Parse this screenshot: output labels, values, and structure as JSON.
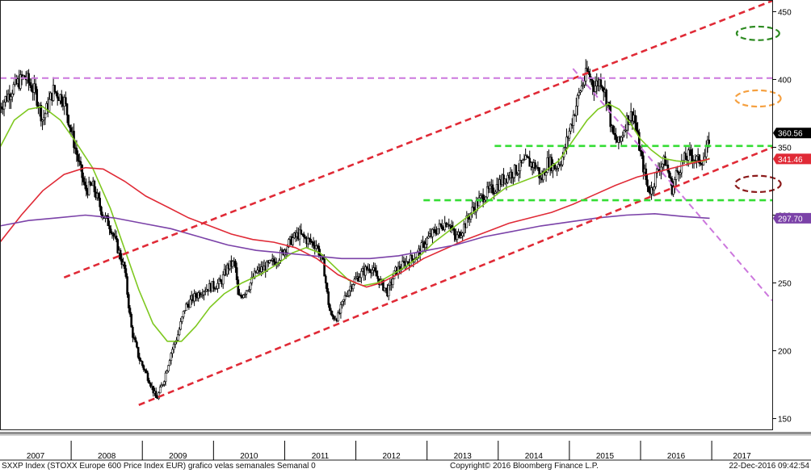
{
  "chart_data": {
    "type": "line",
    "series_desc": "weekly candlesticks with 50-week, 100-week and 200-week moving averages",
    "y_axis": {
      "position": "right",
      "ylim": [
        142,
        458
      ],
      "ticks": [
        150,
        200,
        250,
        300,
        350,
        400,
        450
      ]
    },
    "x_axis": {
      "xlim": [
        2007.0,
        2017.85
      ],
      "year_labels": [
        "2007",
        "2008",
        "2009",
        "2010",
        "2011",
        "2012",
        "2013",
        "2014",
        "2015",
        "2016",
        "2017"
      ]
    },
    "price_anchors": [
      [
        2007.0,
        380
      ],
      [
        2007.2,
        395
      ],
      [
        2007.35,
        402
      ],
      [
        2007.5,
        390
      ],
      [
        2007.6,
        370
      ],
      [
        2007.75,
        392
      ],
      [
        2007.9,
        385
      ],
      [
        2008.0,
        362
      ],
      [
        2008.1,
        340
      ],
      [
        2008.2,
        318
      ],
      [
        2008.3,
        322
      ],
      [
        2008.45,
        300
      ],
      [
        2008.55,
        292
      ],
      [
        2008.65,
        276
      ],
      [
        2008.75,
        260
      ],
      [
        2008.85,
        215
      ],
      [
        2008.95,
        195
      ],
      [
        2009.1,
        178
      ],
      [
        2009.2,
        164
      ],
      [
        2009.3,
        178
      ],
      [
        2009.4,
        198
      ],
      [
        2009.5,
        212
      ],
      [
        2009.6,
        232
      ],
      [
        2009.7,
        238
      ],
      [
        2009.85,
        245
      ],
      [
        2010.0,
        248
      ],
      [
        2010.1,
        250
      ],
      [
        2010.2,
        262
      ],
      [
        2010.3,
        265
      ],
      [
        2010.35,
        238
      ],
      [
        2010.5,
        248
      ],
      [
        2010.6,
        258
      ],
      [
        2010.75,
        262
      ],
      [
        2010.9,
        268
      ],
      [
        2011.0,
        275
      ],
      [
        2011.1,
        282
      ],
      [
        2011.2,
        286
      ],
      [
        2011.3,
        282
      ],
      [
        2011.45,
        278
      ],
      [
        2011.55,
        262
      ],
      [
        2011.6,
        240
      ],
      [
        2011.65,
        225
      ],
      [
        2011.75,
        225
      ],
      [
        2011.85,
        240
      ],
      [
        2011.95,
        250
      ],
      [
        2012.1,
        258
      ],
      [
        2012.2,
        262
      ],
      [
        2012.35,
        250
      ],
      [
        2012.45,
        243
      ],
      [
        2012.55,
        258
      ],
      [
        2012.7,
        265
      ],
      [
        2012.85,
        270
      ],
      [
        2013.0,
        282
      ],
      [
        2013.15,
        290
      ],
      [
        2013.3,
        296
      ],
      [
        2013.4,
        282
      ],
      [
        2013.5,
        290
      ],
      [
        2013.65,
        305
      ],
      [
        2013.8,
        315
      ],
      [
        2013.95,
        320
      ],
      [
        2014.1,
        328
      ],
      [
        2014.25,
        333
      ],
      [
        2014.4,
        340
      ],
      [
        2014.55,
        335
      ],
      [
        2014.6,
        325
      ],
      [
        2014.7,
        340
      ],
      [
        2014.8,
        335
      ],
      [
        2014.9,
        342
      ],
      [
        2015.05,
        372
      ],
      [
        2015.15,
        392
      ],
      [
        2015.25,
        405
      ],
      [
        2015.35,
        395
      ],
      [
        2015.45,
        400
      ],
      [
        2015.55,
        380
      ],
      [
        2015.6,
        360
      ],
      [
        2015.7,
        352
      ],
      [
        2015.8,
        370
      ],
      [
        2015.9,
        375
      ],
      [
        2016.0,
        345
      ],
      [
        2016.1,
        320
      ],
      [
        2016.15,
        318
      ],
      [
        2016.25,
        335
      ],
      [
        2016.35,
        340
      ],
      [
        2016.45,
        318
      ],
      [
        2016.5,
        330
      ],
      [
        2016.6,
        340
      ],
      [
        2016.7,
        345
      ],
      [
        2016.8,
        340
      ],
      [
        2016.9,
        342
      ],
      [
        2016.95,
        352
      ],
      [
        2016.97,
        360
      ]
    ],
    "moving_averages": [
      {
        "color": "#7ec820",
        "points": [
          [
            2007.0,
            350
          ],
          [
            2007.2,
            370
          ],
          [
            2007.4,
            378
          ],
          [
            2007.6,
            380
          ],
          [
            2007.85,
            370
          ],
          [
            2008.05,
            355
          ],
          [
            2008.3,
            335
          ],
          [
            2008.55,
            305
          ],
          [
            2008.75,
            275
          ],
          [
            2008.95,
            245
          ],
          [
            2009.15,
            220
          ],
          [
            2009.35,
            207
          ],
          [
            2009.55,
            207
          ],
          [
            2009.75,
            218
          ],
          [
            2009.95,
            232
          ],
          [
            2010.15,
            242
          ],
          [
            2010.4,
            250
          ],
          [
            2010.65,
            256
          ],
          [
            2010.9,
            264
          ],
          [
            2011.1,
            272
          ],
          [
            2011.3,
            276
          ],
          [
            2011.5,
            272
          ],
          [
            2011.7,
            262
          ],
          [
            2011.9,
            252
          ],
          [
            2012.1,
            248
          ],
          [
            2012.3,
            250
          ],
          [
            2012.5,
            256
          ],
          [
            2012.7,
            262
          ],
          [
            2012.9,
            270
          ],
          [
            2013.1,
            280
          ],
          [
            2013.35,
            290
          ],
          [
            2013.6,
            300
          ],
          [
            2013.85,
            310
          ],
          [
            2014.1,
            320
          ],
          [
            2014.35,
            325
          ],
          [
            2014.6,
            330
          ],
          [
            2014.85,
            340
          ],
          [
            2015.05,
            355
          ],
          [
            2015.25,
            370
          ],
          [
            2015.4,
            378
          ],
          [
            2015.55,
            382
          ],
          [
            2015.7,
            378
          ],
          [
            2015.85,
            368
          ],
          [
            2016.0,
            356
          ],
          [
            2016.15,
            348
          ],
          [
            2016.3,
            342
          ],
          [
            2016.5,
            340
          ],
          [
            2016.7,
            339
          ],
          [
            2016.9,
            340
          ],
          [
            2016.97,
            342
          ]
        ]
      },
      {
        "color": "#e02a36",
        "points": [
          [
            2007.0,
            280
          ],
          [
            2007.3,
            300
          ],
          [
            2007.6,
            318
          ],
          [
            2007.9,
            330
          ],
          [
            2008.2,
            335
          ],
          [
            2008.45,
            334
          ],
          [
            2008.75,
            325
          ],
          [
            2009.05,
            314
          ],
          [
            2009.35,
            306
          ],
          [
            2009.65,
            298
          ],
          [
            2009.95,
            292
          ],
          [
            2010.25,
            286
          ],
          [
            2010.55,
            282
          ],
          [
            2010.85,
            280
          ],
          [
            2011.15,
            276
          ],
          [
            2011.45,
            268
          ],
          [
            2011.75,
            256
          ],
          [
            2012.0,
            250
          ],
          [
            2012.15,
            247
          ],
          [
            2012.35,
            250
          ],
          [
            2012.65,
            258
          ],
          [
            2012.95,
            268
          ],
          [
            2013.25,
            275
          ],
          [
            2013.55,
            282
          ],
          [
            2013.85,
            288
          ],
          [
            2014.15,
            294
          ],
          [
            2014.45,
            298
          ],
          [
            2014.75,
            302
          ],
          [
            2015.05,
            308
          ],
          [
            2015.35,
            315
          ],
          [
            2015.65,
            322
          ],
          [
            2015.95,
            328
          ],
          [
            2016.25,
            332
          ],
          [
            2016.55,
            336
          ],
          [
            2016.85,
            340
          ],
          [
            2016.97,
            341.46
          ]
        ]
      },
      {
        "color": "#7b42a8",
        "points": [
          [
            2007.0,
            292
          ],
          [
            2007.4,
            296
          ],
          [
            2007.8,
            298
          ],
          [
            2008.2,
            300
          ],
          [
            2008.6,
            298
          ],
          [
            2009.0,
            294
          ],
          [
            2009.4,
            290
          ],
          [
            2009.8,
            284
          ],
          [
            2010.2,
            278
          ],
          [
            2010.6,
            274
          ],
          [
            2011.0,
            272
          ],
          [
            2011.4,
            270
          ],
          [
            2011.8,
            268
          ],
          [
            2012.2,
            268
          ],
          [
            2012.6,
            270
          ],
          [
            2013.0,
            274
          ],
          [
            2013.4,
            278
          ],
          [
            2013.8,
            284
          ],
          [
            2014.2,
            288
          ],
          [
            2014.6,
            292
          ],
          [
            2015.0,
            295
          ],
          [
            2015.4,
            298
          ],
          [
            2015.8,
            300
          ],
          [
            2016.2,
            301
          ],
          [
            2016.6,
            299
          ],
          [
            2016.97,
            297.7
          ]
        ]
      }
    ],
    "trend_lines": [
      {
        "color": "#e02a36",
        "from": [
          2007.9,
          254
        ],
        "to": [
          2017.85,
          458
        ]
      },
      {
        "color": "#e02a36",
        "from": [
          2008.95,
          160
        ],
        "to": [
          2017.85,
          350
        ]
      },
      {
        "color": "#cc77dd",
        "from": [
          2007.0,
          401
        ],
        "to": [
          2017.85,
          401
        ]
      },
      {
        "color": "#cc77dd",
        "from": [
          2015.05,
          408
        ],
        "to": [
          2017.85,
          237
        ]
      },
      {
        "color": "#33dd33",
        "from": [
          2013.95,
          351
        ],
        "to": [
          2017.85,
          351
        ]
      },
      {
        "color": "#33dd33",
        "from": [
          2012.95,
          311
        ],
        "to": [
          2017.85,
          311
        ]
      }
    ],
    "ellipses": [
      {
        "color": "#2e8b22",
        "cx": 2017.65,
        "cy": 434,
        "rx": 0.3,
        "ry": 5
      },
      {
        "color": "#f5a040",
        "cx": 2017.65,
        "cy": 386,
        "rx": 0.32,
        "ry": 6
      },
      {
        "color": "#8b1a1a",
        "cx": 2017.65,
        "cy": 323,
        "rx": 0.32,
        "ry": 6
      }
    ],
    "value_labels": [
      {
        "text": "360.56",
        "value": 360.56,
        "bg": "#000000",
        "fg": "#ffffff"
      },
      {
        "text": "341.46",
        "value": 341.46,
        "bg": "#e02a36",
        "fg": "#ffffff"
      },
      {
        "text": "297.70",
        "value": 297.7,
        "bg": "#7b42a8",
        "fg": "#ffffff"
      }
    ]
  },
  "footer": {
    "index": "SXXP Index (STOXX Europe 600 Price Index EUR) grafico velas semanales Semanal 0",
    "copyright": "Copyright© 2016 Bloomberg Finance L.P.",
    "timestamp": "22-Dec-2016 09:42:54"
  }
}
